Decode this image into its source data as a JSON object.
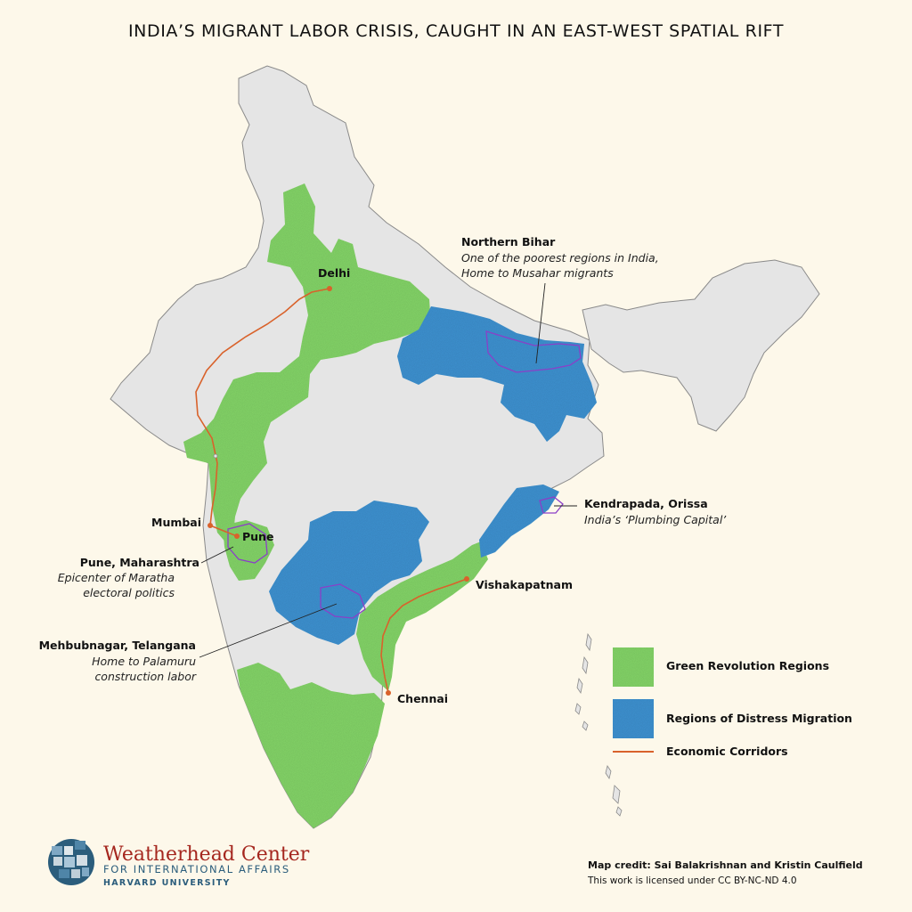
{
  "title": "INDIA’S MIGRANT LABOR CRISIS, CAUGHT IN AN EAST-WEST SPATIAL RIFT",
  "colors": {
    "background": "#fdf8ea",
    "land": "#e5e5e5",
    "border": "#8a8a8a",
    "green_revolution": "#86d86a",
    "distress_migration": "#3f94d4",
    "corridor": "#d9622b",
    "highlight_outline": "#8b3fc8"
  },
  "cities": {
    "delhi": "Delhi",
    "mumbai": "Mumbai",
    "pune": "Pune",
    "vishakapatnam": "Vishakapatnam",
    "chennai": "Chennai"
  },
  "annotations": {
    "northern_bihar": {
      "title": "Northern Bihar",
      "line1": "One of the poorest regions in India,",
      "line2": "Home to Musahar migrants"
    },
    "kendrapada": {
      "title": "Kendrapada, Orissa",
      "line1": "India’s ‘Plumbing Capital’"
    },
    "pune": {
      "title": "Pune, Maharashtra",
      "line1": "Epicenter of Maratha",
      "line2": "electoral politics"
    },
    "mehbubnagar": {
      "title": "Mehbubnagar, Telangana",
      "line1": "Home to Palamuru",
      "line2": "construction labor"
    }
  },
  "legend": {
    "green": "Green Revolution Regions",
    "blue": "Regions of Distress Migration",
    "corridor": "Economic Corridors"
  },
  "logo": {
    "name": "Weatherhead Center",
    "sub": "FOR INTERNATIONAL AFFAIRS",
    "sub2": "HARVARD UNIVERSITY"
  },
  "credit": {
    "line1": "Map credit: Sai Balakrishnan and Kristin Caulfield",
    "line2": "This work is licensed under CC BY-NC-ND 4.0"
  }
}
